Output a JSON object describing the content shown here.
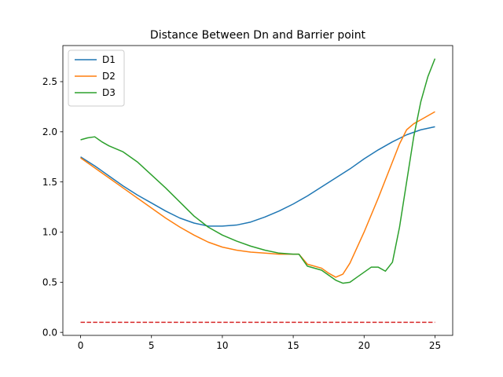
{
  "chart_data": {
    "type": "line",
    "title": "Distance Between Dn and Barrier point",
    "xlabel": "",
    "ylabel": "",
    "xlim": [
      -1.25,
      26.25
    ],
    "ylim": [
      -0.03,
      2.86
    ],
    "x_ticks": [
      0,
      5,
      10,
      15,
      20,
      25
    ],
    "x_tick_labels": [
      "0",
      "5",
      "10",
      "15",
      "20",
      "25"
    ],
    "y_ticks": [
      0.0,
      0.5,
      1.0,
      1.5,
      2.0,
      2.5
    ],
    "y_tick_labels": [
      "0.0",
      "0.5",
      "1.0",
      "1.5",
      "2.0",
      "2.5"
    ],
    "grid": false,
    "legend": {
      "position": "top-left",
      "entries": [
        "D1",
        "D2",
        "D3"
      ]
    },
    "series": [
      {
        "name": "D1",
        "color": "#1f77b4",
        "style": "solid",
        "x": [
          0,
          1,
          2,
          3,
          4,
          5,
          6,
          7,
          8,
          9,
          10,
          11,
          12,
          13,
          14,
          15,
          16,
          17,
          18,
          19,
          20,
          21,
          22,
          23,
          24,
          25
        ],
        "y": [
          1.75,
          1.66,
          1.56,
          1.46,
          1.37,
          1.29,
          1.21,
          1.14,
          1.09,
          1.06,
          1.06,
          1.07,
          1.1,
          1.15,
          1.21,
          1.28,
          1.36,
          1.45,
          1.54,
          1.63,
          1.73,
          1.82,
          1.9,
          1.97,
          2.02,
          2.05
        ]
      },
      {
        "name": "D2",
        "color": "#ff7f0e",
        "style": "solid",
        "x": [
          0,
          1,
          2,
          3,
          4,
          5,
          6,
          7,
          8,
          9,
          10,
          11,
          12,
          13,
          14,
          15,
          15.4,
          16,
          17,
          17.5,
          18,
          18.5,
          19,
          20,
          21,
          22,
          22.5,
          23,
          23.5,
          24,
          24.5,
          25
        ],
        "y": [
          1.74,
          1.64,
          1.54,
          1.44,
          1.34,
          1.24,
          1.14,
          1.05,
          0.97,
          0.9,
          0.85,
          0.82,
          0.8,
          0.79,
          0.78,
          0.78,
          0.78,
          0.68,
          0.64,
          0.59,
          0.55,
          0.58,
          0.69,
          1.0,
          1.34,
          1.7,
          1.88,
          2.02,
          2.08,
          2.12,
          2.16,
          2.2
        ]
      },
      {
        "name": "D3",
        "color": "#2ca02c",
        "style": "solid",
        "x": [
          0,
          0.5,
          1,
          1.5,
          2,
          3,
          4,
          5,
          6,
          7,
          8,
          9,
          10,
          11,
          12,
          13,
          14,
          15,
          15.4,
          16,
          17,
          17.5,
          18,
          18.5,
          19,
          19.5,
          20,
          20.5,
          21,
          21.5,
          22,
          22.5,
          23,
          23.5,
          24,
          24.5,
          25
        ],
        "y": [
          1.92,
          1.94,
          1.95,
          1.9,
          1.86,
          1.8,
          1.7,
          1.57,
          1.44,
          1.3,
          1.16,
          1.05,
          0.97,
          0.91,
          0.86,
          0.82,
          0.79,
          0.78,
          0.78,
          0.66,
          0.62,
          0.57,
          0.52,
          0.49,
          0.5,
          0.55,
          0.6,
          0.65,
          0.65,
          0.61,
          0.7,
          1.05,
          1.5,
          1.95,
          2.3,
          2.55,
          2.73
        ]
      },
      {
        "name": "",
        "color": "#d62728",
        "style": "dashed",
        "x": [
          0,
          25
        ],
        "y": [
          0.1,
          0.1
        ]
      }
    ]
  }
}
